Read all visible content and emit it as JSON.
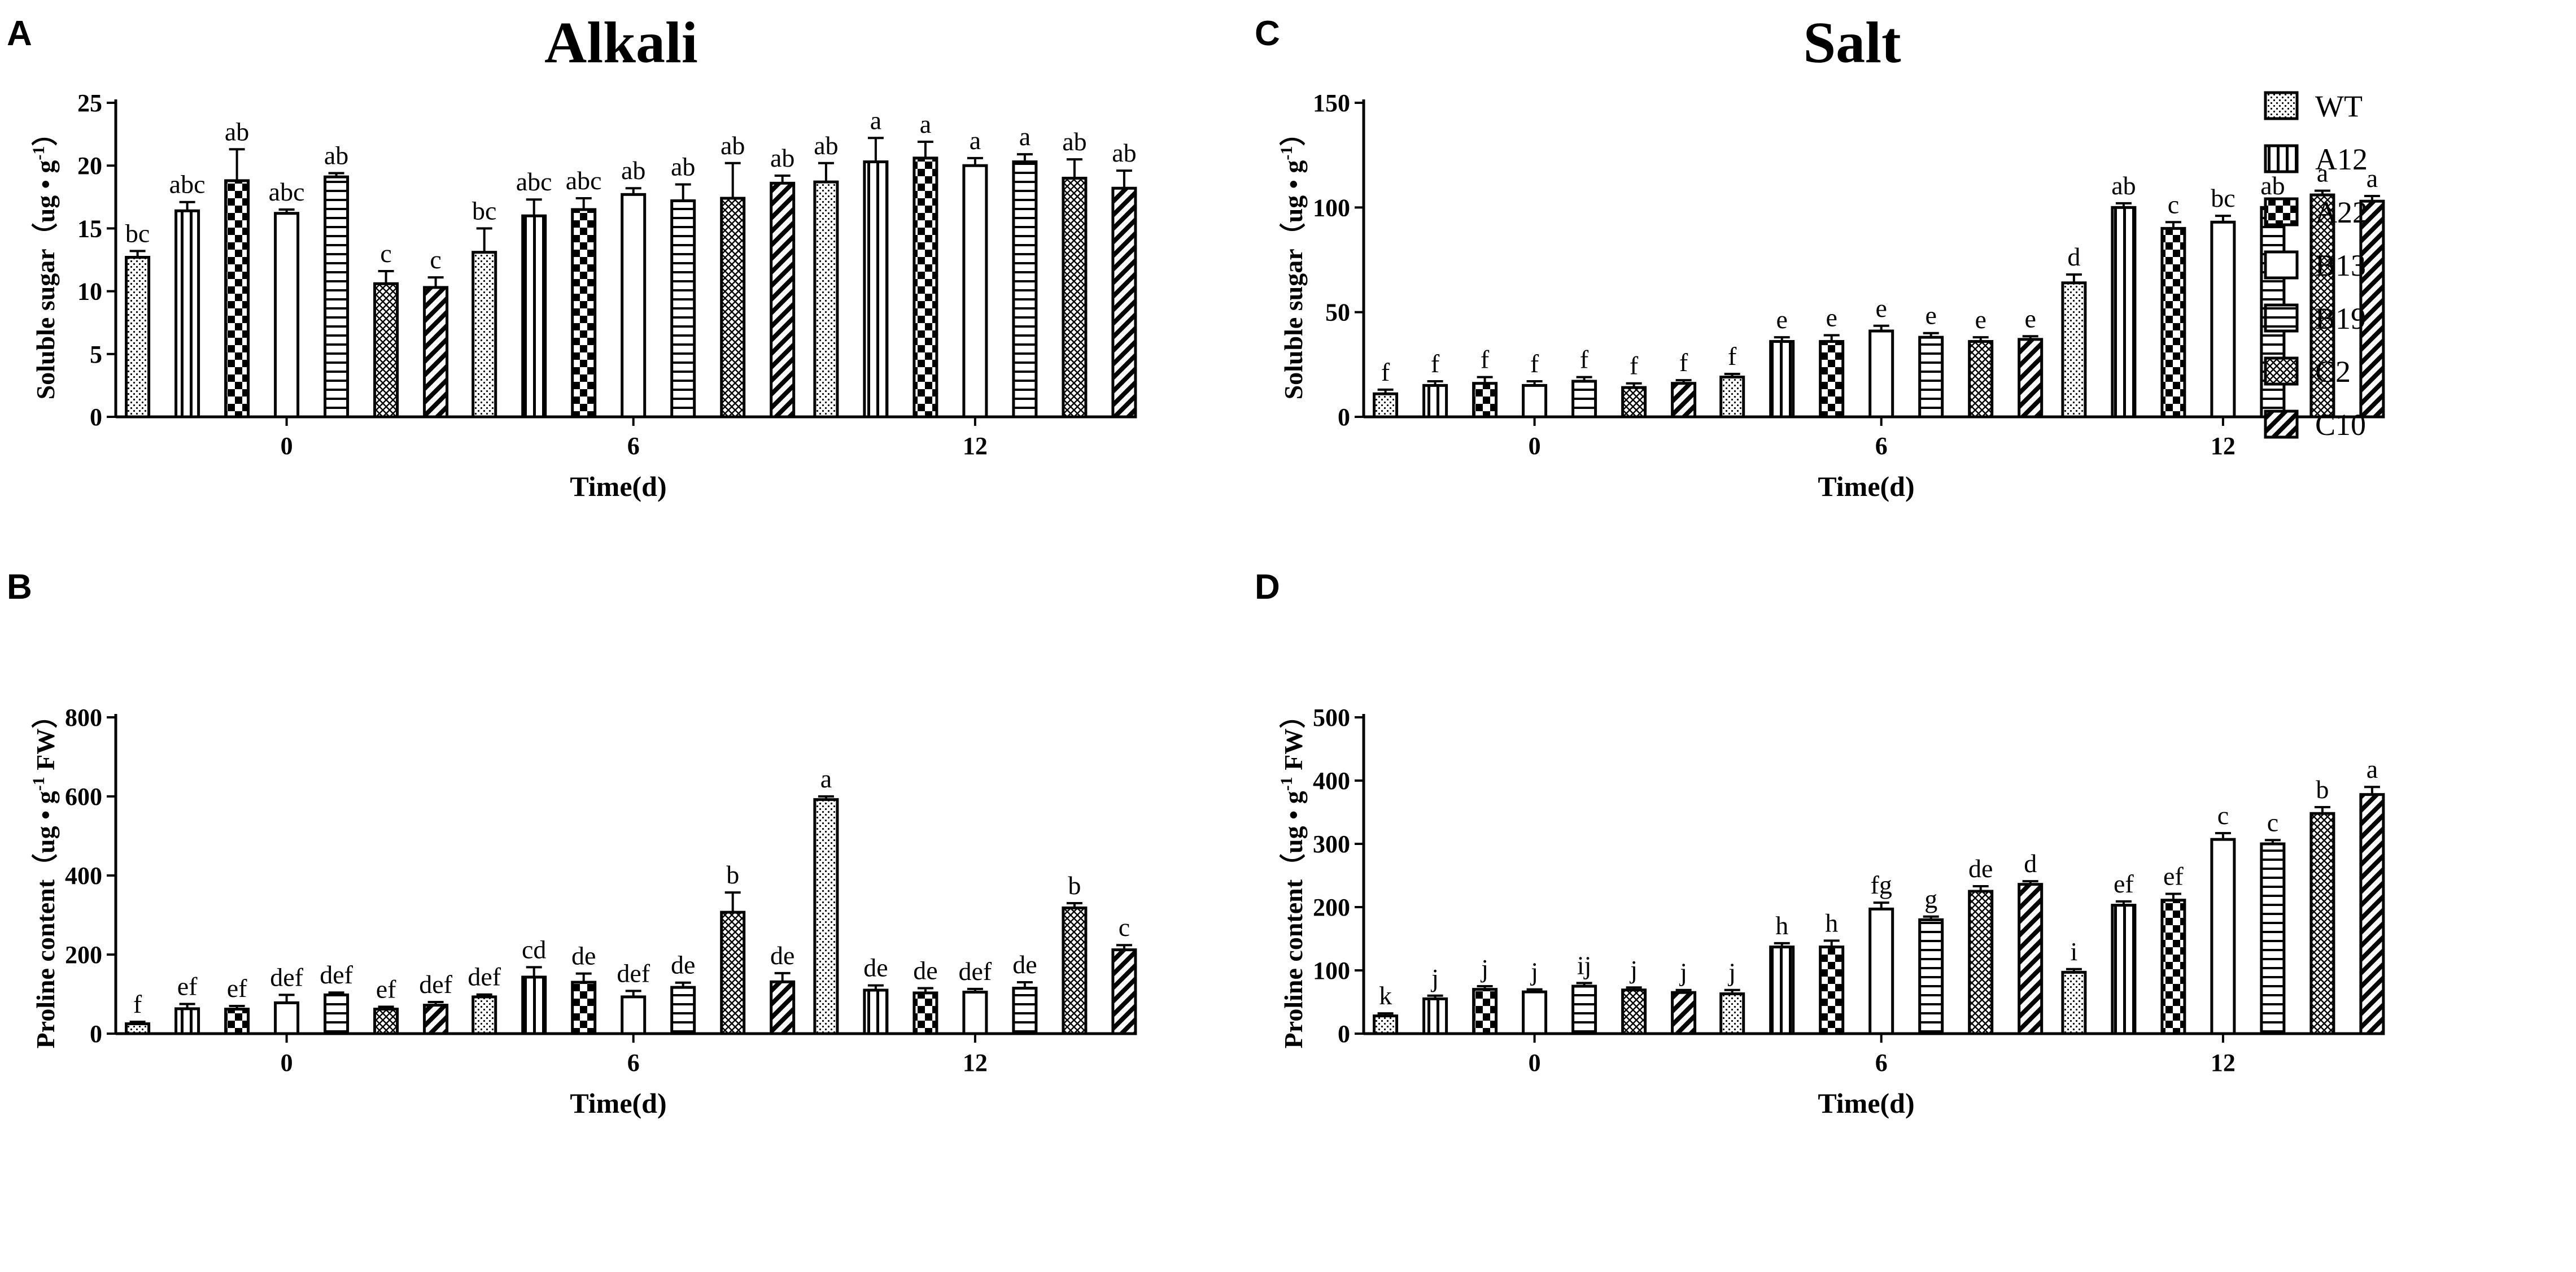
{
  "figure": {
    "legend": {
      "entries": [
        "WT",
        "A12",
        "A22",
        "B13",
        "B19",
        "C2",
        "C10"
      ]
    },
    "patterns": [
      "dots",
      "vstripes",
      "checker",
      "plain",
      "hstripes",
      "crosshatch",
      "diag"
    ]
  },
  "chart_data": [
    {
      "id": "A",
      "type": "bar",
      "panel_letter": "A",
      "title": "Alkali",
      "xlabel": "Time(d)",
      "ylabel": "Soluble sugar（ug • g",
      "ylabel_sup": "-1",
      "ylabel_end": "）",
      "ylim": [
        0,
        25
      ],
      "yticks": [
        0,
        5,
        10,
        15,
        20,
        25
      ],
      "categories": [
        "0",
        "6",
        "12"
      ],
      "series": [
        {
          "name": "WT",
          "values": [
            12.7,
            13.1,
            18.7
          ],
          "errors": [
            0.5,
            1.9,
            1.5
          ],
          "labels": [
            "bc",
            "bc",
            "ab"
          ]
        },
        {
          "name": "A12",
          "values": [
            16.4,
            16.0,
            20.3
          ],
          "errors": [
            0.7,
            1.3,
            1.9
          ],
          "labels": [
            "abc",
            "abc",
            "a"
          ]
        },
        {
          "name": "A22",
          "values": [
            18.8,
            16.5,
            20.6
          ],
          "errors": [
            2.5,
            0.9,
            1.3
          ],
          "labels": [
            "ab",
            "abc",
            "a"
          ]
        },
        {
          "name": "B13",
          "values": [
            16.2,
            17.7,
            20.0
          ],
          "errors": [
            0.3,
            0.5,
            0.6
          ],
          "labels": [
            "abc",
            "ab",
            "a"
          ]
        },
        {
          "name": "B19",
          "values": [
            19.1,
            17.2,
            20.3
          ],
          "errors": [
            0.3,
            1.3,
            0.6
          ],
          "labels": [
            "ab",
            "ab",
            "a"
          ]
        },
        {
          "name": "C2",
          "values": [
            10.6,
            17.4,
            19.0
          ],
          "errors": [
            1.0,
            2.8,
            1.5
          ],
          "labels": [
            "c",
            "ab",
            "ab"
          ]
        },
        {
          "name": "C10",
          "values": [
            10.3,
            18.6,
            18.2
          ],
          "errors": [
            0.8,
            0.6,
            1.4
          ],
          "labels": [
            "c",
            "ab",
            "ab"
          ]
        }
      ]
    },
    {
      "id": "B",
      "type": "bar",
      "panel_letter": "B",
      "title": "",
      "xlabel": "Time(d)",
      "ylabel": "Proline content（ug • g",
      "ylabel_sup": "-1",
      "ylabel_end": " FW）",
      "ylim": [
        0,
        800
      ],
      "yticks": [
        0,
        200,
        400,
        600,
        800
      ],
      "categories": [
        "0",
        "6",
        "12"
      ],
      "series": [
        {
          "name": "WT",
          "values": [
            25,
            93,
            592
          ],
          "errors": [
            5,
            6,
            8
          ],
          "labels": [
            "f",
            "def",
            "a"
          ]
        },
        {
          "name": "A12",
          "values": [
            63,
            143,
            110
          ],
          "errors": [
            12,
            25,
            12
          ],
          "labels": [
            "ef",
            "cd",
            "de"
          ]
        },
        {
          "name": "A22",
          "values": [
            62,
            130,
            103
          ],
          "errors": [
            8,
            22,
            12
          ],
          "labels": [
            "ef",
            "de",
            "de"
          ]
        },
        {
          "name": "B13",
          "values": [
            78,
            93,
            105
          ],
          "errors": [
            20,
            15,
            8
          ],
          "labels": [
            "def",
            "def",
            "def"
          ]
        },
        {
          "name": "B19",
          "values": [
            98,
            117,
            115
          ],
          "errors": [
            6,
            12,
            15
          ],
          "labels": [
            "def",
            "de",
            "de"
          ]
        },
        {
          "name": "C2",
          "values": [
            62,
            307,
            318
          ],
          "errors": [
            6,
            50,
            12
          ],
          "labels": [
            "ef",
            "b",
            "b"
          ]
        },
        {
          "name": "C10",
          "values": [
            72,
            131,
            212
          ],
          "errors": [
            8,
            22,
            12
          ],
          "labels": [
            "def",
            "de",
            "c"
          ]
        }
      ]
    },
    {
      "id": "C",
      "type": "bar",
      "panel_letter": "C",
      "title": "Salt",
      "xlabel": "Time(d)",
      "ylabel": "Soluble sugar（ug • g",
      "ylabel_sup": "-1",
      "ylabel_end": "）",
      "ylim": [
        0,
        150
      ],
      "yticks": [
        0,
        50,
        100,
        150
      ],
      "categories": [
        "0",
        "6",
        "12"
      ],
      "series": [
        {
          "name": "WT",
          "values": [
            11,
            19,
            64
          ],
          "errors": [
            2,
            1.5,
            4
          ],
          "labels": [
            "f",
            "f",
            "d"
          ]
        },
        {
          "name": "A12",
          "values": [
            15,
            36,
            100
          ],
          "errors": [
            2,
            2,
            2
          ],
          "labels": [
            "f",
            "e",
            "ab"
          ]
        },
        {
          "name": "A22",
          "values": [
            16,
            36,
            90
          ],
          "errors": [
            3,
            3,
            3
          ],
          "labels": [
            "f",
            "e",
            "c"
          ]
        },
        {
          "name": "B13",
          "values": [
            15,
            41,
            93
          ],
          "errors": [
            2,
            2.5,
            3
          ],
          "labels": [
            "f",
            "e",
            "bc"
          ]
        },
        {
          "name": "B19",
          "values": [
            17,
            38,
            100
          ],
          "errors": [
            2,
            2,
            2
          ],
          "labels": [
            "f",
            "e",
            "ab"
          ]
        },
        {
          "name": "C2",
          "values": [
            14,
            36,
            106
          ],
          "errors": [
            2,
            2,
            2
          ],
          "labels": [
            "f",
            "e",
            "a"
          ]
        },
        {
          "name": "C10",
          "values": [
            16,
            37,
            103
          ],
          "errors": [
            1.5,
            1.5,
            2.5
          ],
          "labels": [
            "f",
            "e",
            "a"
          ]
        }
      ]
    },
    {
      "id": "D",
      "type": "bar",
      "panel_letter": "D",
      "title": "",
      "xlabel": "Time(d)",
      "ylabel": "Proline content（ug • g",
      "ylabel_sup": "-1",
      "ylabel_end": " FW）",
      "ylim": [
        0,
        500
      ],
      "yticks": [
        0,
        100,
        200,
        300,
        400,
        500
      ],
      "categories": [
        "0",
        "6",
        "12"
      ],
      "series": [
        {
          "name": "WT",
          "values": [
            28,
            63,
            97
          ],
          "errors": [
            4,
            6,
            5
          ],
          "labels": [
            "k",
            "j",
            "i"
          ]
        },
        {
          "name": "A12",
          "values": [
            55,
            137,
            203
          ],
          "errors": [
            5,
            6,
            6
          ],
          "labels": [
            "j",
            "h",
            "ef"
          ]
        },
        {
          "name": "A22",
          "values": [
            70,
            137,
            211
          ],
          "errors": [
            5,
            10,
            10
          ],
          "labels": [
            "j",
            "h",
            "ef"
          ]
        },
        {
          "name": "B13",
          "values": [
            66,
            197,
            307
          ],
          "errors": [
            4,
            10,
            10
          ],
          "labels": [
            "j",
            "fg",
            "c"
          ]
        },
        {
          "name": "B19",
          "values": [
            75,
            180,
            300
          ],
          "errors": [
            5,
            5,
            6
          ],
          "labels": [
            "ij",
            "g",
            "c"
          ]
        },
        {
          "name": "C2",
          "values": [
            69,
            225,
            348
          ],
          "errors": [
            4,
            8,
            10
          ],
          "labels": [
            "j",
            "de",
            "b"
          ]
        },
        {
          "name": "C10",
          "values": [
            65,
            236,
            378
          ],
          "errors": [
            4,
            5,
            12
          ],
          "labels": [
            "j",
            "d",
            "a"
          ]
        }
      ]
    }
  ]
}
